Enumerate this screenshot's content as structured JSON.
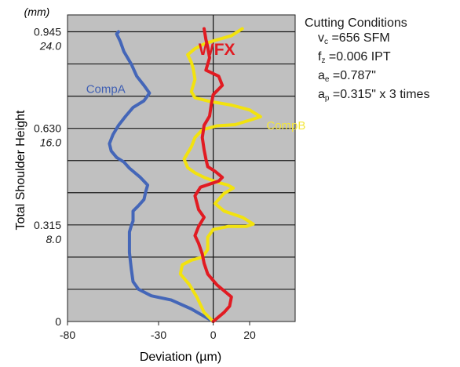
{
  "chart_data": {
    "type": "line",
    "y_unit": "(mm)",
    "ylabel": "Total Shoulder Height",
    "xlabel": "Deviation (µm)",
    "xlim": [
      -80,
      45
    ],
    "ylim": [
      0,
      1.0
    ],
    "x_ticks": [
      -80,
      -30,
      0,
      20
    ],
    "y_ticks": [
      {
        "value": 0.945,
        "label": "0.945",
        "sub": "24.0"
      },
      {
        "value": 0.63,
        "label": "0.630",
        "sub": "16.0"
      },
      {
        "value": 0.315,
        "label": "0.315",
        "sub": "8.0"
      },
      {
        "value": 0,
        "label": "0",
        "sub": ""
      }
    ],
    "grid": true,
    "series": [
      {
        "name": "CompA",
        "color": "#4466b8",
        "label_at": [
          -59,
          0.745
        ],
        "label_color": "#3f5fb3",
        "points": [
          [
            0,
            0
          ],
          [
            -12,
            0.041
          ],
          [
            -23,
            0.07
          ],
          [
            -34,
            0.084
          ],
          [
            -41,
            0.105
          ],
          [
            -44,
            0.13
          ],
          [
            -45,
            0.172
          ],
          [
            -46,
            0.225
          ],
          [
            -46,
            0.27
          ],
          [
            -46,
            0.292
          ],
          [
            -45,
            0.312
          ],
          [
            -44,
            0.328
          ],
          [
            -44,
            0.36
          ],
          [
            -41,
            0.378
          ],
          [
            -38,
            0.398
          ],
          [
            -37,
            0.425
          ],
          [
            -36,
            0.445
          ],
          [
            -40,
            0.47
          ],
          [
            -46,
            0.5
          ],
          [
            -49,
            0.52
          ],
          [
            -53,
            0.535
          ],
          [
            -56,
            0.556
          ],
          [
            -57,
            0.58
          ],
          [
            -55,
            0.61
          ],
          [
            -52,
            0.64
          ],
          [
            -48,
            0.67
          ],
          [
            -44,
            0.698
          ],
          [
            -38,
            0.72
          ],
          [
            -35,
            0.745
          ],
          [
            -38,
            0.77
          ],
          [
            -42,
            0.8
          ],
          [
            -45,
            0.84
          ],
          [
            -49,
            0.88
          ],
          [
            -51,
            0.913
          ],
          [
            -53,
            0.938
          ],
          [
            -52,
            0.945
          ]
        ]
      },
      {
        "name": "CompB",
        "color": "#f2e20f",
        "label_at": [
          40,
          0.626
        ],
        "label_color": "#f4e73a",
        "points": [
          [
            0,
            0
          ],
          [
            -5,
            0.03
          ],
          [
            -9,
            0.08
          ],
          [
            -13,
            0.12
          ],
          [
            -18,
            0.155
          ],
          [
            -17,
            0.185
          ],
          [
            -12,
            0.2
          ],
          [
            -6,
            0.21
          ],
          [
            -3,
            0.235
          ],
          [
            -3,
            0.275
          ],
          [
            0,
            0.3
          ],
          [
            8,
            0.31
          ],
          [
            18,
            0.31
          ],
          [
            22,
            0.318
          ],
          [
            16,
            0.34
          ],
          [
            6,
            0.36
          ],
          [
            1,
            0.385
          ],
          [
            6,
            0.418
          ],
          [
            11,
            0.435
          ],
          [
            8,
            0.445
          ],
          [
            2,
            0.455
          ],
          [
            -5,
            0.47
          ],
          [
            -10,
            0.485
          ],
          [
            -14,
            0.502
          ],
          [
            -16,
            0.53
          ],
          [
            -12,
            0.57
          ],
          [
            -10,
            0.6
          ],
          [
            -6,
            0.625
          ],
          [
            2,
            0.638
          ],
          [
            12,
            0.642
          ],
          [
            22,
            0.66
          ],
          [
            26,
            0.668
          ],
          [
            20,
            0.69
          ],
          [
            10,
            0.706
          ],
          [
            -2,
            0.718
          ],
          [
            -10,
            0.73
          ],
          [
            -12,
            0.75
          ],
          [
            -10,
            0.79
          ],
          [
            -11,
            0.825
          ],
          [
            -12,
            0.845
          ],
          [
            -14,
            0.87
          ],
          [
            -10,
            0.89
          ],
          [
            -5,
            0.905
          ],
          [
            0,
            0.915
          ],
          [
            10,
            0.932
          ],
          [
            16,
            0.955
          ]
        ]
      },
      {
        "name": "WFX",
        "color": "#e11b22",
        "label_at": [
          2,
          0.869
        ],
        "label_color": "#e11b22",
        "points": [
          [
            0,
            0
          ],
          [
            6,
            0.03
          ],
          [
            9,
            0.05
          ],
          [
            10,
            0.08
          ],
          [
            6,
            0.1
          ],
          [
            2,
            0.12
          ],
          [
            -3,
            0.155
          ],
          [
            -5,
            0.19
          ],
          [
            -6,
            0.22
          ],
          [
            -8,
            0.255
          ],
          [
            -10,
            0.28
          ],
          [
            -8,
            0.31
          ],
          [
            -5,
            0.34
          ],
          [
            -8,
            0.365
          ],
          [
            -10,
            0.41
          ],
          [
            -7,
            0.438
          ],
          [
            -2,
            0.448
          ],
          [
            3,
            0.458
          ],
          [
            5,
            0.47
          ],
          [
            1,
            0.49
          ],
          [
            -3,
            0.505
          ],
          [
            -4,
            0.53
          ],
          [
            -5,
            0.56
          ],
          [
            -6,
            0.6
          ],
          [
            -5,
            0.64
          ],
          [
            -2,
            0.67
          ],
          [
            -1,
            0.71
          ],
          [
            0,
            0.74
          ],
          [
            5,
            0.77
          ],
          [
            3,
            0.8
          ],
          [
            -4,
            0.82
          ],
          [
            -2,
            0.86
          ],
          [
            -3,
            0.895
          ],
          [
            -4,
            0.92
          ],
          [
            -5,
            0.955
          ]
        ]
      }
    ]
  },
  "conditions": {
    "title": "Cutting Conditions",
    "rows": [
      {
        "main": "v",
        "sub": "c",
        "value": " =656 SFM"
      },
      {
        "main": "f",
        "sub": "z",
        "value": " =0.006 IPT"
      },
      {
        "main": "a",
        "sub": "e",
        "value": " =0.787\""
      },
      {
        "main": "a",
        "sub": "p",
        "value": " =0.315\" x 3 times"
      }
    ]
  }
}
